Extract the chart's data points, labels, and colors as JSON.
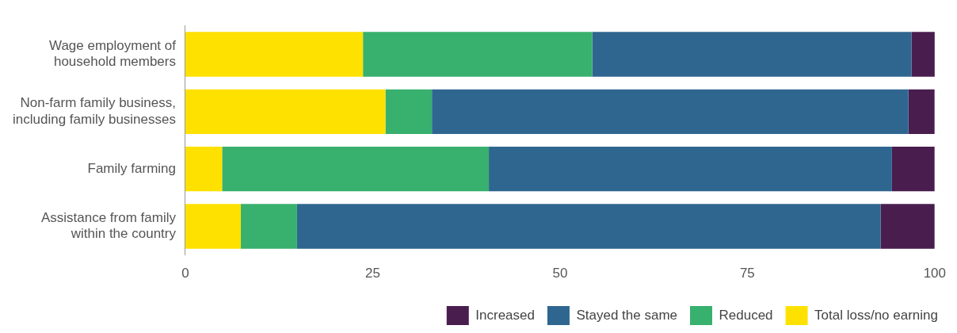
{
  "chart_data": {
    "type": "bar",
    "orientation": "horizontal",
    "stacked": true,
    "categories": [
      "Wage employment of\nhousehold members",
      "Non-farm family business,\nincluding family businesses",
      "Family farming",
      "Assistance from family\nwithin the country"
    ],
    "series": [
      {
        "name": "Total loss/no earning",
        "color": "#ffe100",
        "values": [
          23.7,
          26.7,
          4.9,
          7.4
        ]
      },
      {
        "name": "Reduced",
        "color": "#38b06e",
        "values": [
          30.6,
          6.2,
          35.6,
          7.5
        ]
      },
      {
        "name": "Stayed the same",
        "color": "#2f6690",
        "values": [
          42.6,
          63.6,
          53.8,
          77.9
        ]
      },
      {
        "name": "Increased",
        "color": "#4a1d4f",
        "values": [
          3.4,
          3.5,
          5.7,
          7.2
        ]
      }
    ],
    "xlim": [
      0,
      100
    ],
    "xticks": [
      0,
      25,
      50,
      75,
      100
    ],
    "grid": false,
    "legend": "bottom right"
  }
}
